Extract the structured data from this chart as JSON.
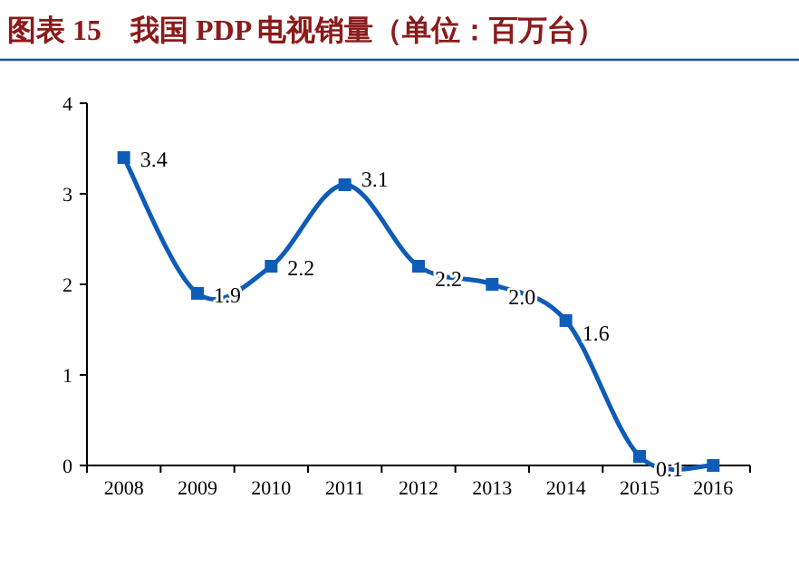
{
  "chart_data": {
    "type": "line",
    "title": "图表 15　我国 PDP 电视销量（单位：百万台）",
    "categories": [
      "2008",
      "2009",
      "2010",
      "2011",
      "2012",
      "2013",
      "2014",
      "2015",
      "2016"
    ],
    "series": [
      {
        "color": "#0f5cb8",
        "values": [
          3.4,
          1.9,
          2.2,
          3.1,
          2.2,
          2.0,
          1.6,
          0.1,
          0
        ]
      }
    ],
    "value_labels": [
      "3.4",
      "1.9",
      "2.2",
      "3.1",
      "2.2",
      "2.0",
      "1.6",
      "0.1",
      null
    ],
    "ylim": [
      0,
      4
    ],
    "yticks": [
      0,
      1,
      2,
      3,
      4
    ],
    "grid": false,
    "marker": "square",
    "line_style": "solid"
  }
}
